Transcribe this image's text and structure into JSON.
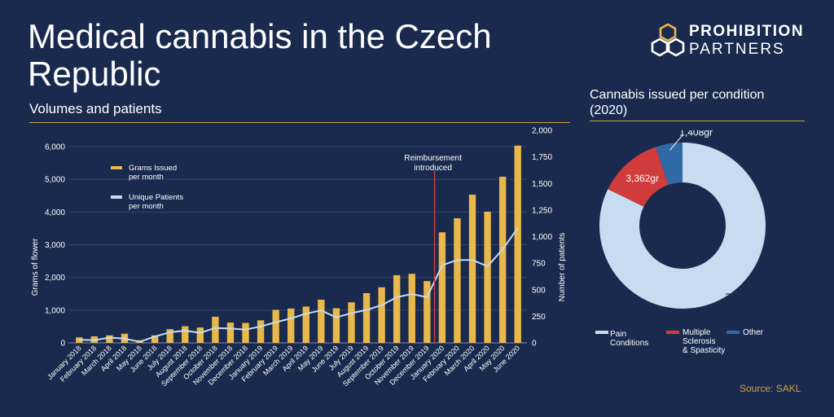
{
  "title": "Medical cannabis in the Czech Republic",
  "subtitle": "Volumes and patients",
  "logo": {
    "line1": "PROHIBITION",
    "line2": "PARTNERS",
    "icon": "hexagon-cluster-icon"
  },
  "source": "Source: SAKL",
  "colors": {
    "background": "#1a2a4e",
    "gold": "#e8b84a",
    "line": "#c5dbf0",
    "red": "#d03c3c",
    "blue": "#2f6aa6",
    "lightblue": "#c7dcf0",
    "accent_rule": "#c9a23a"
  },
  "chart_data": [
    {
      "type": "bar",
      "ylabel": "Grams of flower",
      "y2label": "Number of patients",
      "ylim": [
        0,
        6000
      ],
      "y_ticks": [
        "0",
        "1,000",
        "2,000",
        "3,000",
        "4,000",
        "5,000",
        "6,000"
      ],
      "y2lim": [
        0,
        2000
      ],
      "y2_ticks": [
        "0",
        "250",
        "500",
        "750",
        "1,000",
        "1,250",
        "1,500",
        "1,750",
        "2,000"
      ],
      "categories": [
        "January 2018",
        "February 2018",
        "March 2018",
        "April 2018",
        "May 2018",
        "June 2018",
        "July 2018",
        "August 2018",
        "September 2018",
        "October 2018",
        "November 2018",
        "December 2018",
        "January 2019",
        "February 2019",
        "March 2019",
        "April 2019",
        "May 2019",
        "June 2019",
        "July 2019",
        "August 2019",
        "September 2019",
        "October 2019",
        "November 2019",
        "December 2019",
        "January 2020",
        "February 2020",
        "March 2020",
        "April 2020",
        "May 2020",
        "June 2020"
      ],
      "series": [
        {
          "name": "Grams issued per month",
          "axis": "left",
          "kind": "bar",
          "values": [
            170,
            200,
            230,
            280,
            80,
            230,
            420,
            510,
            470,
            800,
            620,
            610,
            690,
            1010,
            1050,
            1110,
            1320,
            1060,
            1240,
            1520,
            1700,
            2070,
            2110,
            1890,
            3380,
            3810,
            4530,
            4010,
            5080,
            6030
          ]
        },
        {
          "name": "Unique Patients per month",
          "axis": "right",
          "kind": "line",
          "values": [
            30,
            25,
            50,
            40,
            10,
            60,
            100,
            115,
            95,
            140,
            135,
            125,
            155,
            195,
            230,
            275,
            305,
            240,
            280,
            310,
            355,
            430,
            460,
            430,
            730,
            780,
            780,
            720,
            880,
            1080
          ]
        }
      ],
      "legend": {
        "placement": "top-left",
        "items": [
          {
            "text": "Grams Issued",
            "text2": "per month",
            "color": "#e8b84a"
          },
          {
            "text": "Unique Patients",
            "text2": "per month",
            "color": "#c5dbf0"
          }
        ]
      },
      "annotation": {
        "text": "Reimbursement",
        "text2": "introduced",
        "at_index": 23.5
      }
    },
    {
      "type": "pie",
      "title": "Cannabis issued per condition (2020)",
      "donut": true,
      "slices": [
        {
          "label": "Pain Conditions",
          "value": 22084,
          "value_label": "22,084gr",
          "color": "#c7dcf0"
        },
        {
          "label": "Multiple Sclerosis & Spasticity",
          "value": 3362,
          "value_label": "3,362gr",
          "color": "#d03c3c"
        },
        {
          "label": "Other",
          "value": 1408,
          "value_label": "1,408gr",
          "color": "#2f6aa6"
        }
      ],
      "legend": {
        "placement": "bottom",
        "items": [
          {
            "lines": [
              "Pain",
              "Conditions"
            ],
            "color": "#c7dcf0"
          },
          {
            "lines": [
              "Multiple",
              "Sclerosis",
              "& Spasticity"
            ],
            "color": "#d03c3c"
          },
          {
            "lines": [
              "Other"
            ],
            "color": "#2f6aa6"
          }
        ]
      }
    }
  ]
}
